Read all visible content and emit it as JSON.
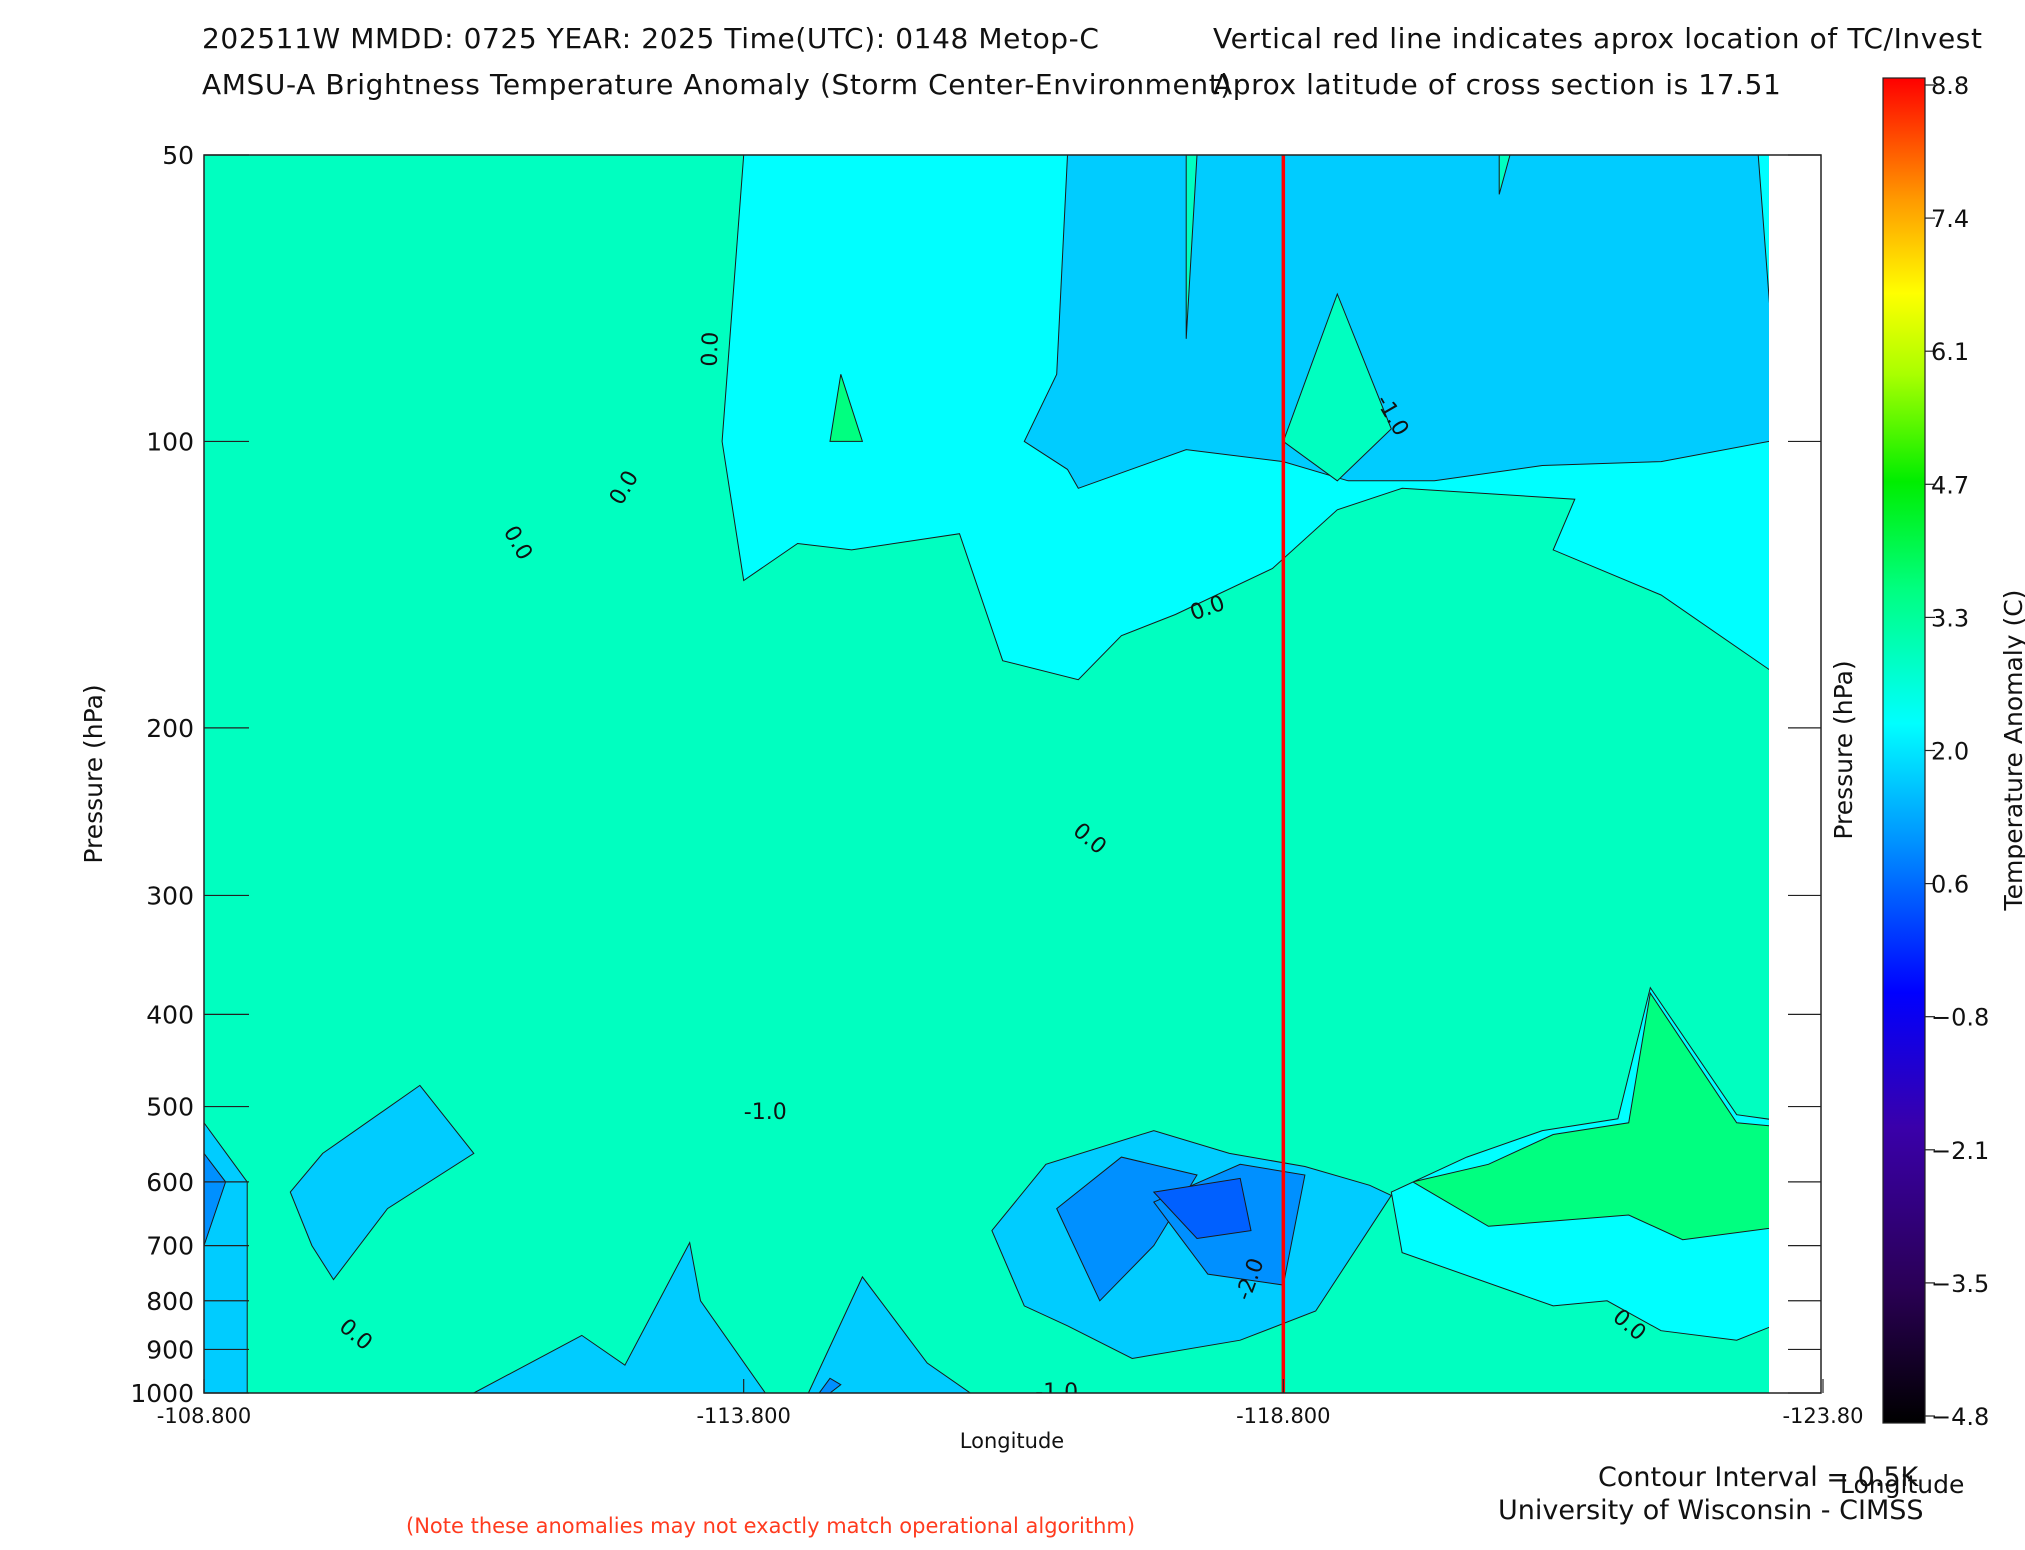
{
  "header": {
    "line1_left": "202511W  MMDD: 0725 YEAR: 2025 Time(UTC): 0148 Metop-C",
    "line2_left": "AMSU-A Brightness Temperature Anomaly (Storm Center-Environment)",
    "line1_right": "Vertical red line indicates aprox location of TC/Invest",
    "line2_right": "Aprox latitude of cross section is 17.51"
  },
  "footer": {
    "contour_interval": "Contour Interval = 0.5K",
    "credit": "University of Wisconsin - CIMSS",
    "note": "(Note these anomalies may not exactly match operational algorithm)"
  },
  "chart_data": {
    "type": "heatmap",
    "xlabel": "Longitude",
    "ylabel": "Pressure (hPa)",
    "y_right_label": "Pressure (hPa)",
    "xlim": [
      -108.8,
      -123.8
    ],
    "x_ticks": [
      -108.8,
      -113.8,
      -118.8,
      -123.8
    ],
    "x_tick_labels": [
      "-108.800",
      "-113.800",
      "-118.800",
      "-123.80"
    ],
    "ylim": [
      1000,
      50
    ],
    "y_scale": "log",
    "y_ticks": [
      50,
      100,
      200,
      300,
      400,
      500,
      600,
      700,
      800,
      900,
      1000
    ],
    "storm_longitude": -118.8,
    "storm_line_color": "#ff0000",
    "contour_interval_K": 0.5,
    "contour_labels": [
      {
        "text": "0.0",
        "x": -113.5,
        "p": 80,
        "rotate": -88
      },
      {
        "text": "0.0",
        "x": -112.7,
        "p": 112,
        "rotate": -60
      },
      {
        "text": "0.0",
        "x": -111.7,
        "p": 128,
        "rotate": 60
      },
      {
        "text": "0.0",
        "x": -118.1,
        "p": 150,
        "rotate": -20
      },
      {
        "text": "-1.0",
        "x": -119.8,
        "p": 94,
        "rotate": 60
      },
      {
        "text": "0.0",
        "x": -117.0,
        "p": 262,
        "rotate": 40
      },
      {
        "text": "-1.0",
        "x": -114.0,
        "p": 508,
        "rotate": 0
      },
      {
        "text": "-2.0",
        "x": -118.5,
        "p": 760,
        "rotate": -70
      },
      {
        "text": "0.0",
        "x": -110.2,
        "p": 870,
        "rotate": 40
      },
      {
        "text": "0.0",
        "x": -122.0,
        "p": 850,
        "rotate": 40
      },
      {
        "text": "-1.0",
        "x": -116.7,
        "p": 1000,
        "rotate": 0
      }
    ],
    "regions": [
      {
        "level": 1.0,
        "pts": [
          [
            -109.5,
            50
          ],
          [
            -110.5,
            50
          ],
          [
            -110.4,
            100
          ],
          [
            -110.0,
            118
          ],
          [
            -109.5,
            170
          ],
          [
            -109.3,
            125
          ]
        ]
      },
      {
        "level": 1.0,
        "pts": [
          [
            -108.8,
            50
          ],
          [
            -109.2,
            100
          ],
          [
            -108.8,
            110
          ]
        ]
      },
      {
        "level": 1.0,
        "pts": [
          [
            -112.8,
            75
          ],
          [
            -113.2,
            100
          ],
          [
            -112.8,
            112
          ],
          [
            -112.4,
            100
          ]
        ]
      },
      {
        "level": 1.0,
        "pts": [
          [
            -114.7,
            85
          ],
          [
            -114.9,
            100
          ],
          [
            -114.6,
            100
          ]
        ]
      },
      {
        "level": 1.0,
        "pts": [
          [
            -115.1,
            150
          ],
          [
            -115.5,
            158
          ],
          [
            -115.4,
            180
          ],
          [
            -114.9,
            165
          ]
        ]
      },
      {
        "level": 1.0,
        "pts": [
          [
            -118.0,
            155
          ],
          [
            -118.8,
            186
          ],
          [
            -119.6,
            188
          ],
          [
            -120.8,
            190
          ],
          [
            -120.5,
            230
          ],
          [
            -120.1,
            320
          ],
          [
            -119.0,
            240
          ],
          [
            -118.8,
            220
          ],
          [
            -118.0,
            260
          ],
          [
            -117.6,
            200
          ]
        ]
      },
      {
        "level": 1.0,
        "pts": [
          [
            -120.0,
            600
          ],
          [
            -120.7,
            575
          ],
          [
            -121.3,
            535
          ],
          [
            -122.0,
            520
          ],
          [
            -122.2,
            380
          ],
          [
            -123.0,
            520
          ],
          [
            -123.8,
            530
          ],
          [
            -123.8,
            660
          ],
          [
            -122.5,
            690
          ],
          [
            -122.0,
            650
          ],
          [
            -120.7,
            668
          ]
        ]
      },
      {
        "level": 1.0,
        "pts": [
          [
            -109.7,
            1000
          ],
          [
            -110.5,
            985
          ],
          [
            -111.2,
            1000
          ]
        ]
      },
      {
        "level": 1.0,
        "pts": [
          [
            -111.7,
            990
          ],
          [
            -112.3,
            1000
          ],
          [
            -111.5,
            1000
          ]
        ]
      },
      {
        "level": 0.5,
        "pts": [
          [
            -108.8,
            50
          ],
          [
            -113.8,
            50
          ],
          [
            -113.6,
            100
          ],
          [
            -113.8,
            140
          ],
          [
            -114.3,
            128
          ],
          [
            -114.8,
            130
          ],
          [
            -115.8,
            125
          ],
          [
            -116.2,
            170
          ],
          [
            -116.9,
            178
          ],
          [
            -117.3,
            160
          ],
          [
            -117.8,
            152
          ],
          [
            -118.7,
            136
          ],
          [
            -119.3,
            118
          ],
          [
            -119.9,
            112
          ],
          [
            -121.5,
            115
          ],
          [
            -121.3,
            130
          ],
          [
            -122.3,
            145
          ],
          [
            -123.8,
            190
          ],
          [
            -123.8,
            525
          ],
          [
            -123.0,
            510
          ],
          [
            -122.2,
            375
          ],
          [
            -121.9,
            515
          ],
          [
            -121.2,
            530
          ],
          [
            -120.5,
            565
          ],
          [
            -119.8,
            615
          ],
          [
            -119.9,
            712
          ],
          [
            -121.3,
            810
          ],
          [
            -121.8,
            800
          ],
          [
            -122.3,
            860
          ],
          [
            -123.0,
            880
          ],
          [
            -123.8,
            810
          ],
          [
            -123.8,
            1000
          ],
          [
            -108.8,
            1000
          ]
        ]
      },
      {
        "level": -0.5,
        "pts": [
          [
            -109.2,
            600
          ],
          [
            -108.8,
            520
          ],
          [
            -108.8,
            1000
          ],
          [
            -109.2,
            1000
          ]
        ]
      },
      {
        "level": -0.5,
        "pts": [
          [
            -109.6,
            615
          ],
          [
            -109.9,
            560
          ],
          [
            -110.8,
            475
          ],
          [
            -111.3,
            560
          ],
          [
            -110.5,
            640
          ],
          [
            -110.0,
            760
          ],
          [
            -109.8,
            700
          ]
        ]
      },
      {
        "level": -0.5,
        "pts": [
          [
            -111.3,
            1000
          ],
          [
            -112.3,
            870
          ],
          [
            -112.7,
            935
          ],
          [
            -113.3,
            695
          ],
          [
            -113.4,
            800
          ],
          [
            -114.0,
            1000
          ]
        ]
      },
      {
        "level": -0.5,
        "pts": [
          [
            -114.4,
            1000
          ],
          [
            -114.9,
            755
          ],
          [
            -115.5,
            930
          ],
          [
            -115.9,
            1000
          ]
        ]
      },
      {
        "level": -0.5,
        "pts": [
          [
            -116.1,
            675
          ],
          [
            -116.6,
            575
          ],
          [
            -117.6,
            530
          ],
          [
            -118.3,
            560
          ],
          [
            -119.0,
            578
          ],
          [
            -119.6,
            605
          ],
          [
            -119.8,
            620
          ],
          [
            -119.1,
            820
          ],
          [
            -118.4,
            880
          ],
          [
            -117.4,
            920
          ],
          [
            -116.8,
            850
          ],
          [
            -116.4,
            810
          ]
        ]
      },
      {
        "level": -0.5,
        "pts": [
          [
            -116.8,
            50
          ],
          [
            -123.2,
            50
          ],
          [
            -123.5,
            140
          ],
          [
            -123.8,
            150
          ],
          [
            -123.8,
            110
          ],
          [
            -123.3,
            100
          ],
          [
            -122.3,
            105
          ],
          [
            -121.2,
            106
          ],
          [
            -120.2,
            110
          ],
          [
            -119.4,
            110
          ],
          [
            -118.8,
            105
          ],
          [
            -117.9,
            102
          ],
          [
            -116.9,
            112
          ],
          [
            -116.8,
            107
          ],
          [
            -116.4,
            100
          ],
          [
            -116.7,
            85
          ]
        ]
      },
      {
        "level": -0.5,
        "pts": [
          [
            -123.8,
            940
          ],
          [
            -123.5,
            1000
          ],
          [
            -123.8,
            1000
          ]
        ]
      },
      {
        "level": 0.5,
        "pts": [
          [
            -119.3,
            70
          ],
          [
            -119.8,
            97
          ],
          [
            -119.3,
            110
          ],
          [
            -118.8,
            100
          ]
        ]
      },
      {
        "level": 0.5,
        "pts": [
          [
            -117.9,
            50
          ],
          [
            -117.9,
            78
          ],
          [
            -118.0,
            50
          ]
        ]
      },
      {
        "level": 0.5,
        "pts": [
          [
            -120.8,
            50
          ],
          [
            -120.8,
            55
          ],
          [
            -120.9,
            50
          ]
        ]
      },
      {
        "level": -1.0,
        "pts": [
          [
            -116.7,
            640
          ],
          [
            -117.3,
            565
          ],
          [
            -118.0,
            590
          ],
          [
            -117.6,
            700
          ],
          [
            -117.1,
            800
          ]
        ]
      },
      {
        "level": -1.0,
        "pts": [
          [
            -117.6,
            630
          ],
          [
            -118.4,
            575
          ],
          [
            -119.0,
            590
          ],
          [
            -118.8,
            770
          ],
          [
            -118.1,
            750
          ]
        ]
      },
      {
        "level": -1.0,
        "pts": [
          [
            -108.8,
            560
          ],
          [
            -109.0,
            600
          ],
          [
            -108.8,
            700
          ]
        ]
      },
      {
        "level": -1.0,
        "pts": [
          [
            -114.6,
            965
          ],
          [
            -114.7,
            980
          ],
          [
            -114.6,
            1000
          ],
          [
            -114.5,
            1000
          ]
        ]
      },
      {
        "level": -1.5,
        "pts": [
          [
            -117.6,
            615
          ],
          [
            -118.4,
            595
          ],
          [
            -118.5,
            675
          ],
          [
            -118.0,
            688
          ]
        ]
      }
    ]
  }
}
